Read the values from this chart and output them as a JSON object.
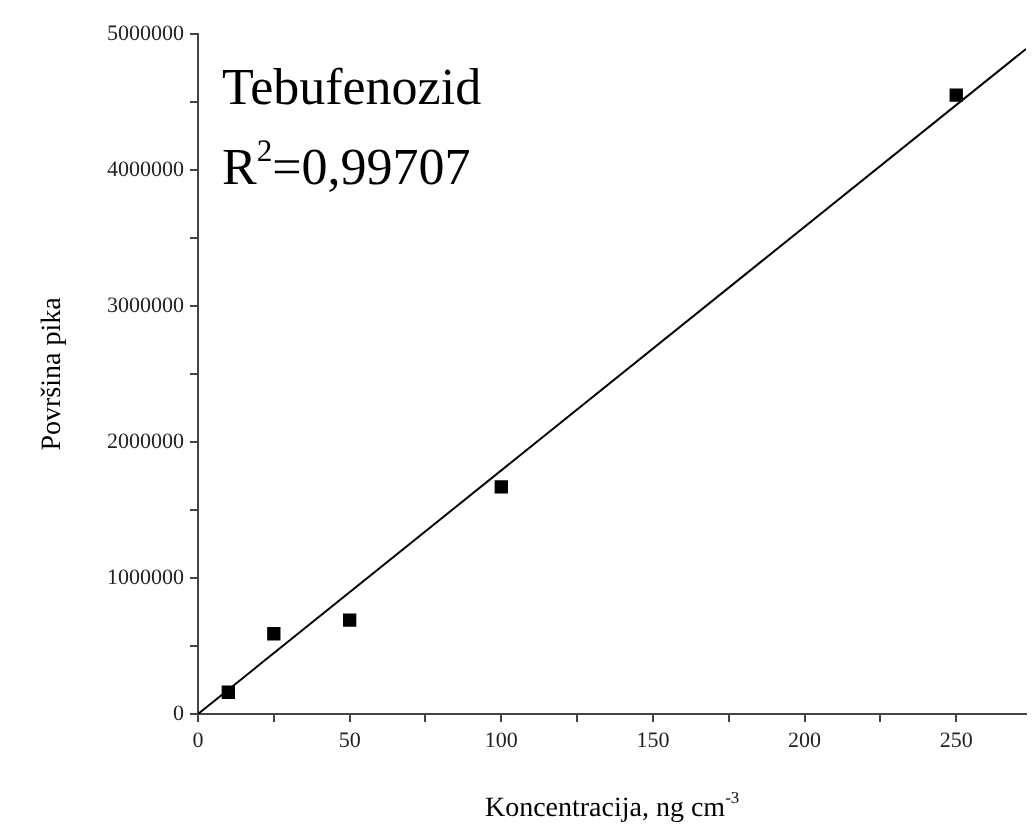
{
  "chart_data": {
    "type": "scatter",
    "xlabel": "Koncentracija, ng cm$^{-3}$",
    "ylabel": "Površina pika",
    "annotations": [
      "Tebufenozid",
      "R$^{2}$=0,99707"
    ],
    "marker": "square",
    "grid": false,
    "legend": false,
    "xlim": [
      0,
      273
    ],
    "xticks": [
      0,
      {
        "value": 25,
        "label": null
      },
      50,
      {
        "value": 75,
        "label": null
      },
      100,
      {
        "value": 125,
        "label": null
      },
      150,
      {
        "value": 175,
        "label": null
      },
      200,
      {
        "value": 225,
        "label": null
      },
      250
    ],
    "ylim": [
      0,
      5000000
    ],
    "yticks": [
      0,
      {
        "value": 500000,
        "label": null
      },
      1000000,
      {
        "value": 1500000,
        "label": null
      },
      2000000,
      {
        "value": 2500000,
        "label": null
      },
      3000000,
      {
        "value": 3500000,
        "label": null
      },
      4000000,
      {
        "value": 4500000,
        "label": null
      },
      5000000
    ],
    "series": [
      {
        "color": "#000000",
        "x": [
          10,
          25,
          50,
          100,
          250
        ],
        "values": [
          160000,
          590000,
          690000,
          1670000,
          4550000
        ]
      },
      {
        "type": "line",
        "color": "#000000",
        "marker": "none",
        "x": [
          0,
          273
        ],
        "values": [
          0,
          4890000
        ]
      }
    ]
  }
}
